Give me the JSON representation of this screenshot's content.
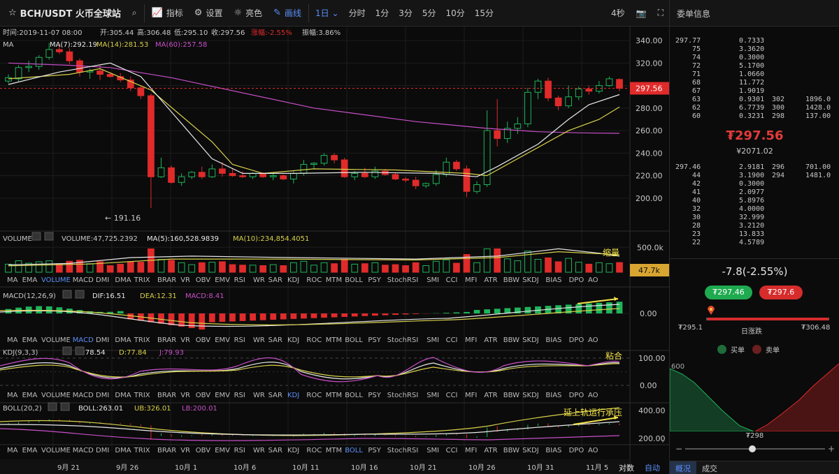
{
  "toolbar": {
    "symbol": "BCH/USDT 火币全球站",
    "indicators": "指标",
    "settings": "设置",
    "theme": "亮色",
    "draw": "画线",
    "interval_selected": "1日",
    "intervals": [
      "分时",
      "1分",
      "3分",
      "5分",
      "10分",
      "15分"
    ],
    "refresh": "4秒"
  },
  "right_header": {
    "title": "委单信息"
  },
  "info_line": {
    "time": "时间:2019-11-07 08:00",
    "open": "开:305.44",
    "high": "高:306.48",
    "low": "低:295.10",
    "close": "收:297.56",
    "change": "涨幅:-2.55%",
    "amplitude": "振幅:3.86%"
  },
  "ma_line": {
    "label": "MA",
    "ma7": "MA(7):292.19",
    "ma14": "MA(14):281.53",
    "ma60": "MA(60):257.58"
  },
  "price_axis": [
    "340.00",
    "320.00",
    "300.00",
    "280.00",
    "260.00",
    "240.00",
    "220.00",
    "200.00"
  ],
  "current_price": "297.56",
  "low_marker": "← 191.16",
  "volume_line": {
    "label": "VOLUME",
    "value": "VOLUME:47,725.2392",
    "ma5": "MA(5):160,528.9839",
    "ma10": "MA(10):234,854.4051"
  },
  "volume_axis": "500.0k",
  "volume_current": "47.7k",
  "volume_annotation": "缩量",
  "macd_line": {
    "label": "MACD(12,26,9)",
    "dif": "DIF:16.51",
    "dea": "DEA:12.31",
    "macd": "MACD:8.41"
  },
  "macd_axis": "0.00",
  "kdj_line": {
    "label": "KDJ(9,3,3)",
    "k": "K:78.54",
    "d": "D:77.84",
    "j": "J:79.93"
  },
  "kdj_axis": [
    "100.00",
    "0.00"
  ],
  "kdj_annotation": "粘合",
  "boll_line": {
    "label": "BOLL(20,2)",
    "boll": "BOLL:263.01",
    "ub": "UB:326.01",
    "lb": "LB:200.01"
  },
  "boll_axis": [
    "400.00",
    "200.00"
  ],
  "boll_annotation": "延上轨运行承压",
  "indicator_tabs": [
    "MA",
    "EMA",
    "VOLUME",
    "MACD",
    "DMI",
    "DMA",
    "TRIX",
    "BRAR",
    "VR",
    "OBV",
    "EMV",
    "RSI",
    "WR",
    "SAR",
    "KDJ",
    "ROC",
    "MTM",
    "BOLL",
    "PSY",
    "StochRSI",
    "SMI",
    "CCI",
    "MFI",
    "ATR",
    "BBW",
    "SKDJ",
    "BIAS",
    "DPO",
    "AO"
  ],
  "active_tabs": [
    "VOLUME",
    "MACD",
    "KDJ",
    "BOLL"
  ],
  "date_axis": [
    "9月 21",
    "9月 26",
    "10月 1",
    "10月 6",
    "10月 11",
    "10月 16",
    "10月 21",
    "10月 26",
    "10月 31",
    "11月 5"
  ],
  "bottom_buttons": {
    "log": "对数",
    "auto": "自动"
  },
  "colors": {
    "up": "#1fb45a",
    "down": "#e02b2b",
    "accent": "#5b8ff9",
    "ma7": "#e8e8e8",
    "ma14": "#d8d14a",
    "ma60": "#c84fc8"
  },
  "order_book": {
    "asks": [
      {
        "price": "297.77",
        "qty": "0.7333",
        "count": "",
        "sum": ""
      },
      {
        "price": "75",
        "qty": "3.3620",
        "count": "",
        "sum": ""
      },
      {
        "price": "74",
        "qty": "0.3000",
        "count": "",
        "sum": ""
      },
      {
        "price": "72",
        "qty": "5.1700",
        "count": "",
        "sum": ""
      },
      {
        "price": "71",
        "qty": "1.0660",
        "count": "",
        "sum": ""
      },
      {
        "price": "68",
        "qty": "11.772",
        "count": "",
        "sum": ""
      },
      {
        "price": "67",
        "qty": "1.9019",
        "count": "",
        "sum": ""
      },
      {
        "price": "63",
        "qty": "0.9301",
        "count": "302",
        "sum": "1896.0"
      },
      {
        "price": "62",
        "qty": "6.7739",
        "count": "300",
        "sum": "1428.0"
      },
      {
        "price": "60",
        "qty": "0.3231",
        "count": "298",
        "sum": "137.00"
      }
    ],
    "last_price": "₮297.56",
    "last_price_cny": "¥2071.02",
    "bids": [
      {
        "price": "297.46",
        "qty": "2.9181",
        "count": "296",
        "sum": "701.00"
      },
      {
        "price": "44",
        "qty": "3.1900",
        "count": "294",
        "sum": "1481.0"
      },
      {
        "price": "42",
        "qty": "0.3000",
        "count": "",
        "sum": ""
      },
      {
        "price": "41",
        "qty": "2.0977",
        "count": "",
        "sum": ""
      },
      {
        "price": "40",
        "qty": "5.8976",
        "count": "",
        "sum": ""
      },
      {
        "price": "32",
        "qty": "4.0000",
        "count": "",
        "sum": ""
      },
      {
        "price": "30",
        "qty": "32.999",
        "count": "",
        "sum": ""
      },
      {
        "price": "28",
        "qty": "3.2120",
        "count": "",
        "sum": ""
      },
      {
        "price": "23",
        "qty": "13.833",
        "count": "",
        "sum": ""
      },
      {
        "price": "22",
        "qty": "4.5789",
        "count": "",
        "sum": ""
      }
    ]
  },
  "ticker": {
    "change": "-7.8(-2.55%)",
    "bid": "₮297.46",
    "ask": "₮297.6",
    "range_low": "₮295.1",
    "range_high": "₮306.48",
    "range_label": "日涨跌",
    "position": 0.04
  },
  "depth": {
    "buy_label": "买单",
    "sell_label": "卖单",
    "axis": "600",
    "price": "₮298"
  },
  "side_tabs": [
    "概况",
    "成交"
  ],
  "chart_data": {
    "type": "candlestick",
    "title": "BCH/USDT 火币全球站",
    "interval": "1日",
    "x_labels": [
      "9月 21",
      "9月 26",
      "10月 1",
      "10月 6",
      "10月 11",
      "10月 16",
      "10月 21",
      "10月 26",
      "10月 31",
      "11月 5"
    ],
    "ylim": [
      190,
      345
    ],
    "candles": [
      [
        304,
        310,
        302,
        307
      ],
      [
        306,
        318,
        303,
        316
      ],
      [
        316,
        322,
        312,
        317
      ],
      [
        317,
        327,
        314,
        325
      ],
      [
        325,
        338,
        323,
        332
      ],
      [
        332,
        337,
        328,
        330
      ],
      [
        330,
        333,
        319,
        322
      ],
      [
        322,
        324,
        308,
        312
      ],
      [
        312,
        315,
        306,
        313
      ],
      [
        313,
        318,
        305,
        310
      ],
      [
        310,
        312,
        307,
        308
      ],
      [
        308,
        311,
        303,
        305
      ],
      [
        305,
        308,
        295,
        298
      ],
      [
        298,
        300,
        288,
        291
      ],
      [
        291,
        293,
        191.16,
        219
      ],
      [
        219,
        236,
        218,
        227
      ],
      [
        227,
        229,
        213,
        214
      ],
      [
        214,
        222,
        211,
        219
      ],
      [
        219,
        224,
        217,
        223
      ],
      [
        223,
        228,
        217,
        219
      ],
      [
        219,
        230,
        218,
        226
      ],
      [
        226,
        232,
        219,
        222
      ],
      [
        222,
        226,
        219,
        220
      ],
      [
        220,
        224,
        218,
        219
      ],
      [
        219,
        223,
        217,
        222
      ],
      [
        222,
        223,
        218,
        219
      ],
      [
        219,
        223,
        216,
        220
      ],
      [
        220,
        221,
        216,
        217
      ],
      [
        217,
        224,
        213,
        222
      ],
      [
        222,
        234,
        220,
        230
      ],
      [
        230,
        232,
        226,
        231
      ],
      [
        231,
        240,
        229,
        238
      ],
      [
        238,
        240,
        231,
        234
      ],
      [
        234,
        236,
        218,
        219
      ],
      [
        219,
        224,
        216,
        222
      ],
      [
        222,
        227,
        218,
        219
      ],
      [
        219,
        228,
        217,
        224
      ],
      [
        224,
        226,
        220,
        221
      ],
      [
        221,
        223,
        216,
        217
      ],
      [
        217,
        219,
        214,
        216
      ],
      [
        216,
        219,
        208,
        211
      ],
      [
        211,
        214,
        209,
        213
      ],
      [
        213,
        225,
        211,
        221
      ],
      [
        221,
        236,
        219,
        232
      ],
      [
        232,
        234,
        224,
        226
      ],
      [
        226,
        229,
        201,
        206
      ],
      [
        206,
        215,
        204,
        212
      ],
      [
        212,
        278,
        210,
        260
      ],
      [
        260,
        288,
        246,
        253
      ],
      [
        253,
        268,
        249,
        262
      ],
      [
        262,
        272,
        257,
        266
      ],
      [
        266,
        298,
        263,
        294
      ],
      [
        294,
        306,
        288,
        304
      ],
      [
        304,
        307,
        286,
        289
      ],
      [
        289,
        291,
        278,
        282
      ],
      [
        282,
        300,
        280,
        290
      ],
      [
        290,
        299,
        287,
        297
      ],
      [
        297,
        300,
        292,
        295
      ],
      [
        295,
        304,
        293,
        300
      ],
      [
        300,
        308,
        299,
        306
      ],
      [
        305.44,
        306.48,
        295.1,
        297.56
      ]
    ],
    "ma7": [
      [
        0,
        301
      ],
      [
        5,
        312
      ],
      [
        10,
        320
      ],
      [
        13,
        308
      ],
      [
        20,
        235
      ],
      [
        23,
        222
      ],
      [
        28,
        222
      ],
      [
        35,
        223
      ],
      [
        42,
        222
      ],
      [
        46,
        219
      ],
      [
        48,
        228
      ],
      [
        52,
        248
      ],
      [
        55,
        270
      ],
      [
        57,
        283
      ],
      [
        60,
        292
      ]
    ],
    "ma14": [
      [
        0,
        306
      ],
      [
        6,
        310
      ],
      [
        9,
        315
      ],
      [
        14,
        296
      ],
      [
        20,
        250
      ],
      [
        22,
        230
      ],
      [
        25,
        222
      ],
      [
        30,
        226
      ],
      [
        38,
        225
      ],
      [
        45,
        222
      ],
      [
        47,
        220
      ],
      [
        50,
        235
      ],
      [
        55,
        260
      ],
      [
        58,
        270
      ],
      [
        60,
        281
      ]
    ],
    "ma60": [
      [
        0,
        320
      ],
      [
        6,
        318
      ],
      [
        10,
        316
      ],
      [
        16,
        307
      ],
      [
        30,
        280
      ],
      [
        40,
        268
      ],
      [
        47,
        262
      ],
      [
        52,
        259
      ],
      [
        56,
        258
      ],
      [
        60,
        257.6
      ]
    ],
    "volume_ma5": [
      [
        0,
        0.25
      ],
      [
        6,
        0.3
      ],
      [
        12,
        0.5
      ],
      [
        18,
        0.55
      ],
      [
        28,
        0.5
      ],
      [
        40,
        0.45
      ],
      [
        48,
        0.55
      ],
      [
        54,
        0.8
      ],
      [
        58,
        0.65
      ],
      [
        60,
        0.55
      ]
    ],
    "volume_ma10": [
      [
        0,
        0.22
      ],
      [
        8,
        0.28
      ],
      [
        16,
        0.45
      ],
      [
        26,
        0.45
      ],
      [
        40,
        0.42
      ],
      [
        48,
        0.5
      ],
      [
        54,
        0.7
      ],
      [
        60,
        0.6
      ]
    ]
  }
}
